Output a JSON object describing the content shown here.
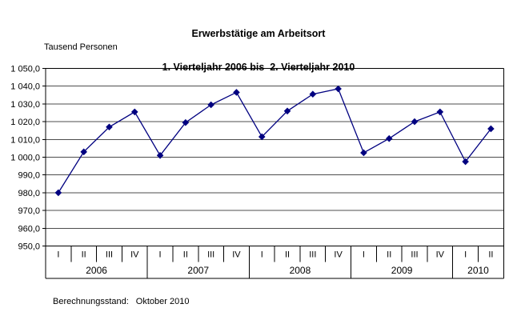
{
  "colors": {
    "background": "#ffffff",
    "line": "#000080",
    "grid": "#4d4d4d",
    "axis": "#000000",
    "text": "#000000"
  },
  "footer": {
    "label": "Berechnungsstand:",
    "value": "Oktober 2010"
  },
  "chart_data": {
    "type": "line",
    "title": "Erwerbstätige am Arbeitsort",
    "subtitle": "1. Vierteljahr 2006 bis  2. Vierteljahr 2010",
    "unit_label": "Tausend Personen",
    "ylim": [
      950,
      1050
    ],
    "ytick_step": 10,
    "grid": true,
    "legend": "none",
    "marker": "diamond",
    "yticks": [
      {
        "value": 1050,
        "label": "1 050,0"
      },
      {
        "value": 1040,
        "label": "1 040,0"
      },
      {
        "value": 1030,
        "label": "1 030,0"
      },
      {
        "value": 1020,
        "label": "1 020,0"
      },
      {
        "value": 1010,
        "label": "1 010,0"
      },
      {
        "value": 1000,
        "label": "1 000,0"
      },
      {
        "value": 990,
        "label": "990,0"
      },
      {
        "value": 980,
        "label": "980,0"
      },
      {
        "value": 970,
        "label": "970,0"
      },
      {
        "value": 960,
        "label": "960,0"
      },
      {
        "value": 950,
        "label": "950,0"
      }
    ],
    "x_groups": [
      {
        "year": "2006",
        "quarters": [
          "I",
          "II",
          "III",
          "IV"
        ]
      },
      {
        "year": "2007",
        "quarters": [
          "I",
          "II",
          "III",
          "IV"
        ]
      },
      {
        "year": "2008",
        "quarters": [
          "I",
          "II",
          "III",
          "IV"
        ]
      },
      {
        "year": "2009",
        "quarters": [
          "I",
          "II",
          "III",
          "IV"
        ]
      },
      {
        "year": "2010",
        "quarters": [
          "I",
          "II"
        ]
      }
    ],
    "series": [
      {
        "values": [
          980.0,
          1003.0,
          1017.0,
          1025.5,
          1001.0,
          1019.5,
          1029.5,
          1036.5,
          1011.5,
          1026.0,
          1035.5,
          1038.5,
          1002.5,
          1010.5,
          1020.0,
          1025.5,
          997.5,
          1016.0
        ]
      }
    ]
  }
}
